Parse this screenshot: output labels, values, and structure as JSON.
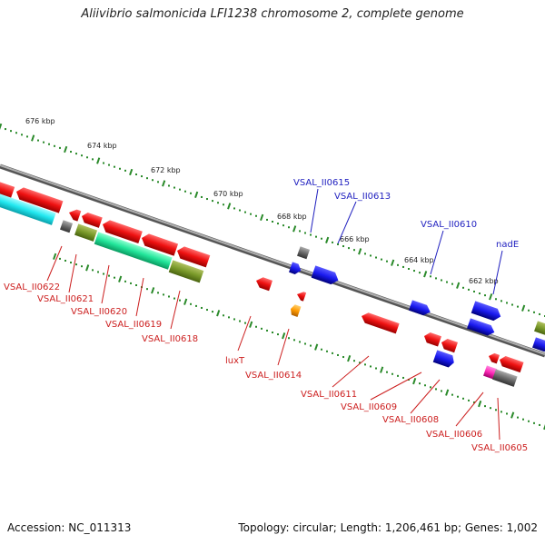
{
  "title": "Aliivibrio salmonicida LFI1238 chromosome 2, complete genome",
  "footer": {
    "accession": "Accession: NC_011313",
    "summary": "Topology: circular; Length: 1,206,461 bp; Genes: 1,002"
  },
  "colors": {
    "backbone": "#888888",
    "scale_dots": "#2a8a2a",
    "forward_label": "#1f1fbf",
    "reverse_label": "#cc1f1f"
  },
  "scale": {
    "ticks": [
      {
        "kbp": 676,
        "label": "676 kbp"
      },
      {
        "kbp": 674,
        "label": "674 kbp"
      },
      {
        "kbp": 672,
        "label": "672 kbp"
      },
      {
        "kbp": 670,
        "label": "670 kbp"
      },
      {
        "kbp": 668,
        "label": "668 kbp"
      },
      {
        "kbp": 666,
        "label": "666 kbp"
      },
      {
        "kbp": 664,
        "label": "664 kbp"
      },
      {
        "kbp": 662,
        "label": "662 kbp"
      }
    ]
  },
  "labels_forward": [
    {
      "text": "VSAL_II0615"
    },
    {
      "text": "VSAL_II0613"
    },
    {
      "text": "VSAL_II0610"
    },
    {
      "text": "nadE"
    }
  ],
  "labels_reverse": [
    {
      "text": "VSAL_II0622"
    },
    {
      "text": "VSAL_II0621"
    },
    {
      "text": "VSAL_II0620"
    },
    {
      "text": "VSAL_II0619"
    },
    {
      "text": "VSAL_II0618"
    },
    {
      "text": "luxT"
    },
    {
      "text": "VSAL_II0614"
    },
    {
      "text": "VSAL_II0611"
    },
    {
      "text": "VSAL_II0609"
    },
    {
      "text": "VSAL_II0608"
    },
    {
      "text": "VSAL_II0606"
    },
    {
      "text": "VSAL_II0605"
    }
  ]
}
